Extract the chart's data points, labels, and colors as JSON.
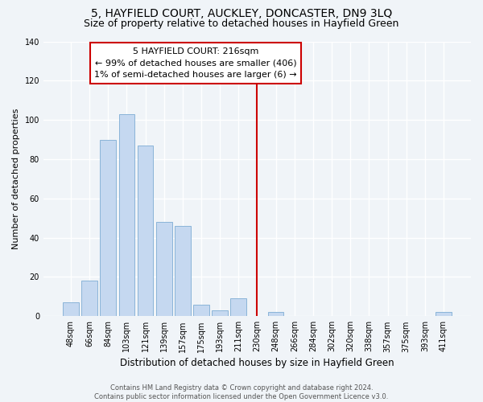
{
  "title": "5, HAYFIELD COURT, AUCKLEY, DONCASTER, DN9 3LQ",
  "subtitle": "Size of property relative to detached houses in Hayfield Green",
  "xlabel": "Distribution of detached houses by size in Hayfield Green",
  "ylabel": "Number of detached properties",
  "footer_line1": "Contains HM Land Registry data © Crown copyright and database right 2024.",
  "footer_line2": "Contains public sector information licensed under the Open Government Licence v3.0.",
  "categories": [
    "48sqm",
    "66sqm",
    "84sqm",
    "103sqm",
    "121sqm",
    "139sqm",
    "157sqm",
    "175sqm",
    "193sqm",
    "211sqm",
    "230sqm",
    "248sqm",
    "266sqm",
    "284sqm",
    "302sqm",
    "320sqm",
    "338sqm",
    "357sqm",
    "375sqm",
    "393sqm",
    "411sqm"
  ],
  "values": [
    7,
    18,
    90,
    103,
    87,
    48,
    46,
    6,
    3,
    9,
    0,
    2,
    0,
    0,
    0,
    0,
    0,
    0,
    0,
    0,
    2
  ],
  "bar_color": "#c5d8f0",
  "bar_edgecolor": "#8ab4d8",
  "ylim": [
    0,
    140
  ],
  "yticks": [
    0,
    20,
    40,
    60,
    80,
    100,
    120,
    140
  ],
  "vline_x": 10.0,
  "vline_color": "#cc0000",
  "annotation_line1": "5 HAYFIELD COURT: 216sqm",
  "annotation_line2": "← 99% of detached houses are smaller (406)",
  "annotation_line3": "1% of semi-detached houses are larger (6) →",
  "annotation_box_facecolor": "#ffffff",
  "annotation_box_edgecolor": "#cc0000",
  "background_color": "#f0f4f8",
  "plot_background": "#f0f4f8",
  "grid_color": "#ffffff",
  "title_fontsize": 10,
  "subtitle_fontsize": 9,
  "annotation_fontsize": 8,
  "tick_fontsize": 7,
  "ylabel_fontsize": 8,
  "xlabel_fontsize": 8.5,
  "footer_fontsize": 6
}
